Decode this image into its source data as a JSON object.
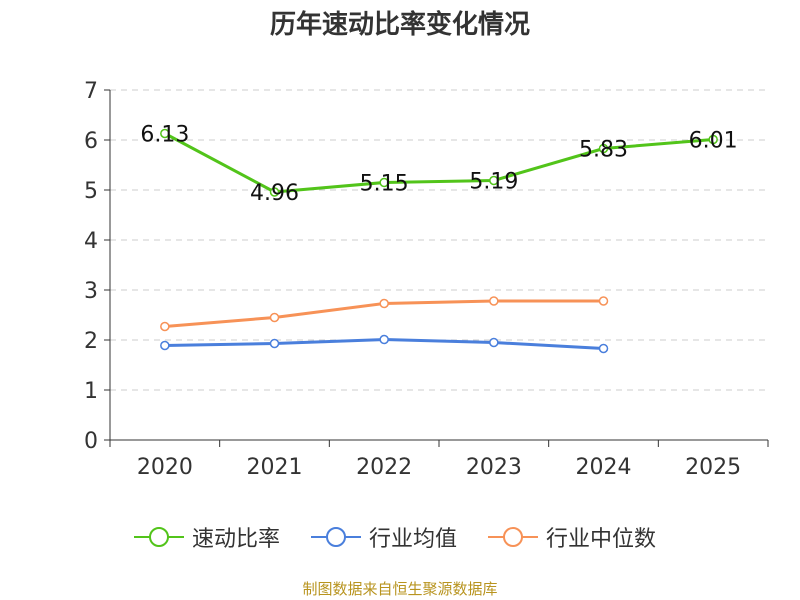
{
  "title": "历年速动比率变化情况",
  "source": "制图数据来自恒生聚源数据库",
  "chart_data": {
    "type": "line",
    "title": "历年速动比率变化情况",
    "categories": [
      "2020",
      "2021",
      "2022",
      "2023",
      "2024",
      "2025"
    ],
    "ylim": [
      0,
      7
    ],
    "yticks": [
      "0",
      "1",
      "2",
      "3",
      "4",
      "5",
      "6",
      "7"
    ],
    "grid": true,
    "legend_position": "bottom",
    "series": [
      {
        "name": "速动比率",
        "color": "#52c41a",
        "values": [
          6.13,
          4.96,
          5.15,
          5.19,
          5.83,
          6.01
        ],
        "labels": [
          "6.13",
          "4.96",
          "5.15",
          "5.19",
          "5.83",
          "6.01"
        ]
      },
      {
        "name": "行业均值",
        "color": "#4a7fdc",
        "values": [
          1.89,
          1.93,
          2.01,
          1.95,
          1.83,
          null
        ]
      },
      {
        "name": "行业中位数",
        "color": "#f79257",
        "values": [
          2.27,
          2.45,
          2.73,
          2.78,
          2.78,
          null
        ]
      }
    ]
  }
}
